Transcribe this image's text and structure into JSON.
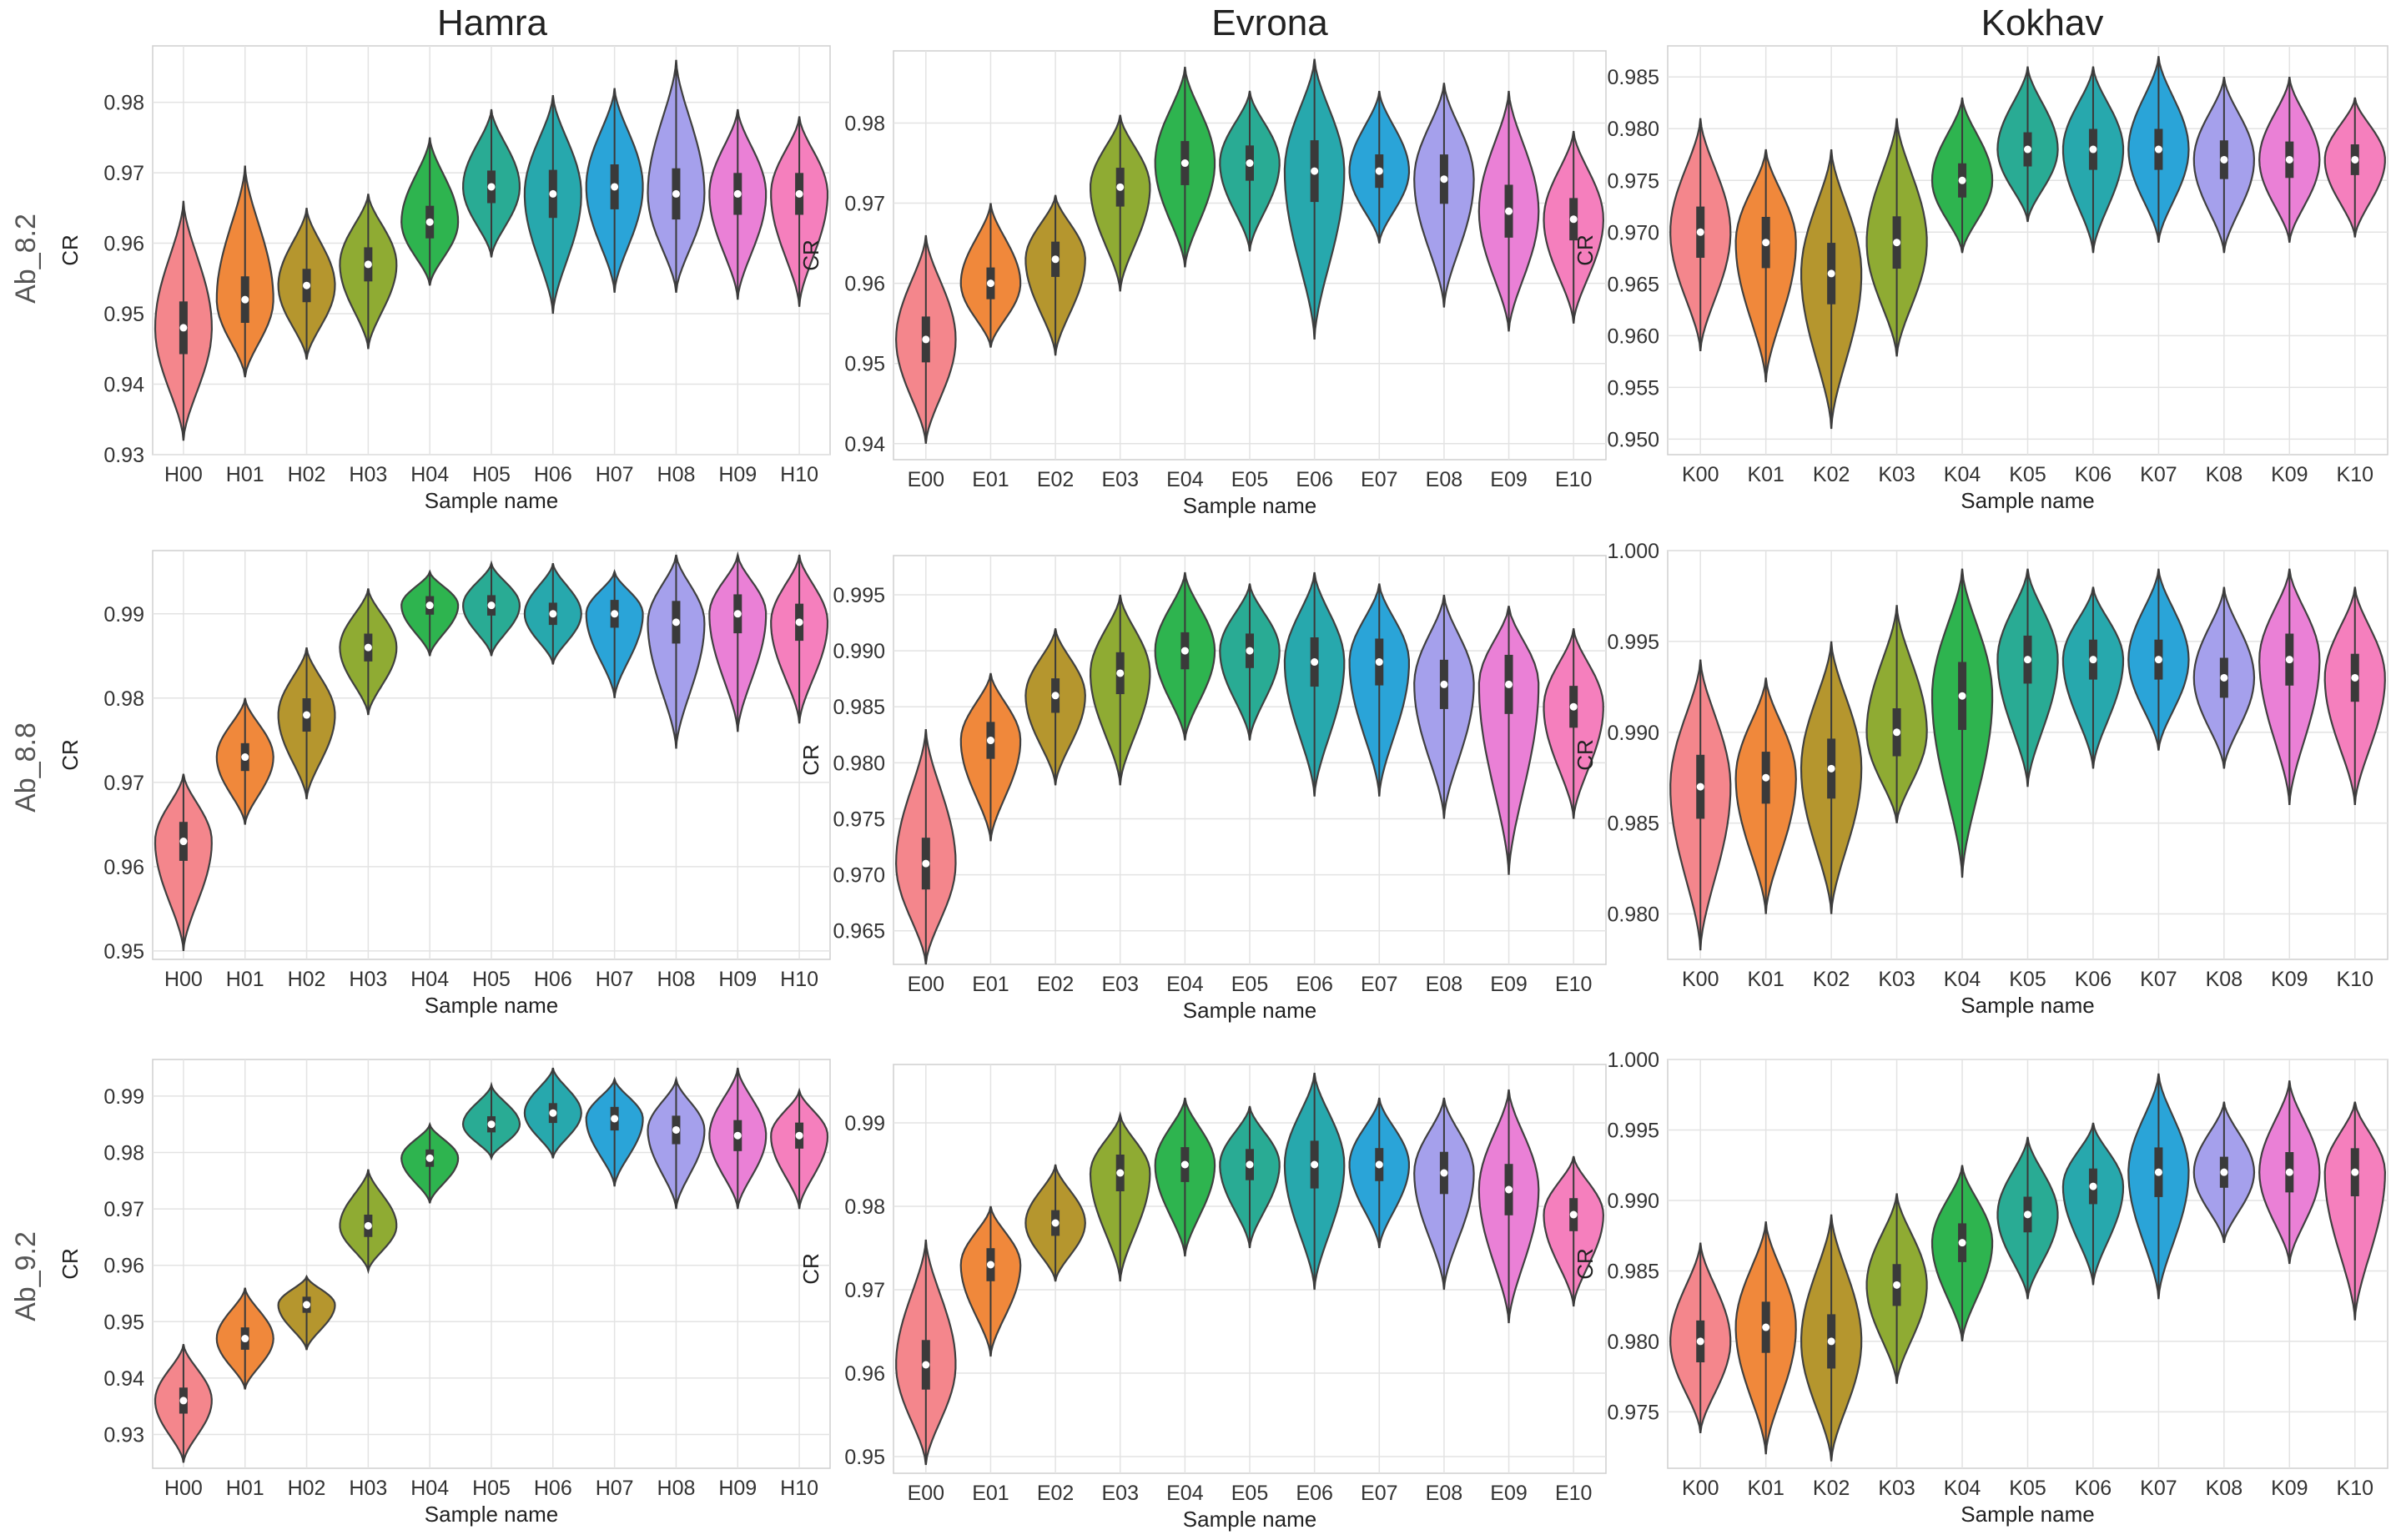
{
  "columns": [
    "Hamra",
    "Evrona",
    "Kokhav"
  ],
  "rows": [
    "Ab_8.2",
    "Ab_8.8",
    "Ab_9.2"
  ],
  "palette": [
    "#f4868c",
    "#f0883b",
    "#b5962e",
    "#8fab33",
    "#2eb44f",
    "#29ab94",
    "#27a8ad",
    "#2aa4d8",
    "#a5a0ec",
    "#ea80d6",
    "#f57fbd"
  ],
  "chart_data": [
    {
      "type": "violin",
      "group": "Hamra",
      "row": "Ab_8.2",
      "xlabel": "Sample name",
      "ylabel": "CR",
      "ylim": [
        0.93,
        0.988
      ],
      "yticks": [
        0.93,
        0.94,
        0.95,
        0.96,
        0.97,
        0.98
      ],
      "tick_labels": [
        "0.93",
        "0.94",
        "0.95",
        "0.96",
        "0.97",
        "0.98"
      ],
      "categories": [
        "H00",
        "H01",
        "H02",
        "H03",
        "H04",
        "H05",
        "H06",
        "H07",
        "H08",
        "H09",
        "H10"
      ],
      "medians": [
        0.948,
        0.952,
        0.954,
        0.957,
        0.963,
        0.968,
        0.967,
        0.968,
        0.967,
        0.967,
        0.967
      ],
      "mins": [
        0.932,
        0.941,
        0.9435,
        0.945,
        0.954,
        0.958,
        0.95,
        0.953,
        0.953,
        0.952,
        0.951
      ],
      "maxs": [
        0.966,
        0.971,
        0.965,
        0.967,
        0.975,
        0.979,
        0.981,
        0.982,
        0.986,
        0.979,
        0.978
      ]
    },
    {
      "type": "violin",
      "group": "Evrona",
      "row": "Ab_8.2",
      "xlabel": "Sample name",
      "ylabel": "CR",
      "ylim": [
        0.938,
        0.989
      ],
      "yticks": [
        0.94,
        0.95,
        0.96,
        0.97,
        0.98
      ],
      "tick_labels": [
        "0.94",
        "0.95",
        "0.96",
        "0.97",
        "0.98"
      ],
      "categories": [
        "E00",
        "E01",
        "E02",
        "E03",
        "E04",
        "E05",
        "E06",
        "E07",
        "E08",
        "E09",
        "E10"
      ],
      "medians": [
        0.953,
        0.96,
        0.963,
        0.972,
        0.975,
        0.975,
        0.974,
        0.974,
        0.973,
        0.969,
        0.968
      ],
      "mins": [
        0.94,
        0.952,
        0.951,
        0.959,
        0.962,
        0.964,
        0.953,
        0.965,
        0.957,
        0.954,
        0.955
      ],
      "maxs": [
        0.966,
        0.97,
        0.971,
        0.981,
        0.987,
        0.984,
        0.988,
        0.984,
        0.985,
        0.984,
        0.979
      ]
    },
    {
      "type": "violin",
      "group": "Kokhav",
      "row": "Ab_8.2",
      "xlabel": "Sample name",
      "ylabel": "CR",
      "ylim": [
        0.9485,
        0.988
      ],
      "yticks": [
        0.95,
        0.955,
        0.96,
        0.965,
        0.97,
        0.975,
        0.98,
        0.985
      ],
      "tick_labels": [
        "0.950",
        "0.955",
        "0.960",
        "0.965",
        "0.970",
        "0.975",
        "0.980",
        "0.985"
      ],
      "categories": [
        "K00",
        "K01",
        "K02",
        "K03",
        "K04",
        "K05",
        "K06",
        "K07",
        "K08",
        "K09",
        "K10"
      ],
      "medians": [
        0.97,
        0.969,
        0.966,
        0.969,
        0.975,
        0.978,
        0.978,
        0.978,
        0.977,
        0.977,
        0.977
      ],
      "mins": [
        0.9585,
        0.9555,
        0.951,
        0.958,
        0.968,
        0.971,
        0.968,
        0.969,
        0.968,
        0.969,
        0.9695
      ],
      "maxs": [
        0.981,
        0.978,
        0.978,
        0.981,
        0.983,
        0.986,
        0.986,
        0.987,
        0.985,
        0.985,
        0.983
      ]
    },
    {
      "type": "violin",
      "group": "Hamra",
      "row": "Ab_8.8",
      "xlabel": "Sample name",
      "ylabel": "CR",
      "ylim": [
        0.949,
        0.9975
      ],
      "yticks": [
        0.95,
        0.96,
        0.97,
        0.98,
        0.99
      ],
      "tick_labels": [
        "0.95",
        "0.96",
        "0.97",
        "0.98",
        "0.99"
      ],
      "categories": [
        "H00",
        "H01",
        "H02",
        "H03",
        "H04",
        "H05",
        "H06",
        "H07",
        "H08",
        "H09",
        "H10"
      ],
      "medians": [
        0.963,
        0.973,
        0.978,
        0.986,
        0.991,
        0.991,
        0.99,
        0.99,
        0.989,
        0.99,
        0.989
      ],
      "mins": [
        0.95,
        0.965,
        0.968,
        0.978,
        0.985,
        0.985,
        0.984,
        0.98,
        0.974,
        0.976,
        0.977
      ],
      "maxs": [
        0.971,
        0.98,
        0.986,
        0.993,
        0.995,
        0.996,
        0.996,
        0.995,
        0.997,
        0.997,
        0.997
      ]
    },
    {
      "type": "violin",
      "group": "Evrona",
      "row": "Ab_8.8",
      "xlabel": "Sample name",
      "ylabel": "CR",
      "ylim": [
        0.962,
        0.9985
      ],
      "yticks": [
        0.965,
        0.97,
        0.975,
        0.98,
        0.985,
        0.99,
        0.995
      ],
      "tick_labels": [
        "0.965",
        "0.970",
        "0.975",
        "0.980",
        "0.985",
        "0.990",
        "0.995"
      ],
      "categories": [
        "E00",
        "E01",
        "E02",
        "E03",
        "E04",
        "E05",
        "E06",
        "E07",
        "E08",
        "E09",
        "E10"
      ],
      "medians": [
        0.971,
        0.982,
        0.986,
        0.988,
        0.99,
        0.99,
        0.989,
        0.989,
        0.987,
        0.987,
        0.985
      ],
      "mins": [
        0.962,
        0.973,
        0.978,
        0.978,
        0.982,
        0.982,
        0.977,
        0.977,
        0.975,
        0.97,
        0.975
      ],
      "maxs": [
        0.983,
        0.988,
        0.992,
        0.995,
        0.997,
        0.996,
        0.997,
        0.996,
        0.995,
        0.994,
        0.992
      ]
    },
    {
      "type": "violin",
      "group": "Kokhav",
      "row": "Ab_8.8",
      "xlabel": "Sample name",
      "ylabel": "CR",
      "ylim": [
        0.9775,
        1.0
      ],
      "yticks": [
        0.98,
        0.985,
        0.99,
        0.995,
        1.0
      ],
      "tick_labels": [
        "0.980",
        "0.985",
        "0.990",
        "0.995",
        "1.000"
      ],
      "categories": [
        "K00",
        "K01",
        "K02",
        "K03",
        "K04",
        "K05",
        "K06",
        "K07",
        "K08",
        "K09",
        "K10"
      ],
      "medians": [
        0.987,
        0.9875,
        0.988,
        0.99,
        0.992,
        0.994,
        0.994,
        0.994,
        0.993,
        0.994,
        0.993
      ],
      "mins": [
        0.978,
        0.98,
        0.98,
        0.985,
        0.982,
        0.987,
        0.988,
        0.989,
        0.988,
        0.986,
        0.986
      ],
      "maxs": [
        0.994,
        0.993,
        0.995,
        0.997,
        0.999,
        0.999,
        0.998,
        0.999,
        0.998,
        0.999,
        0.998
      ]
    },
    {
      "type": "violin",
      "group": "Hamra",
      "row": "Ab_9.2",
      "xlabel": "Sample name",
      "ylabel": "CR",
      "ylim": [
        0.924,
        0.9965
      ],
      "yticks": [
        0.93,
        0.94,
        0.95,
        0.96,
        0.97,
        0.98,
        0.99
      ],
      "tick_labels": [
        "0.93",
        "0.94",
        "0.95",
        "0.96",
        "0.97",
        "0.98",
        "0.99"
      ],
      "categories": [
        "H00",
        "H01",
        "H02",
        "H03",
        "H04",
        "H05",
        "H06",
        "H07",
        "H08",
        "H09",
        "H10"
      ],
      "medians": [
        0.936,
        0.947,
        0.953,
        0.967,
        0.979,
        0.985,
        0.987,
        0.986,
        0.984,
        0.983,
        0.983
      ],
      "mins": [
        0.925,
        0.938,
        0.945,
        0.959,
        0.971,
        0.979,
        0.979,
        0.974,
        0.97,
        0.97,
        0.97
      ],
      "maxs": [
        0.946,
        0.956,
        0.958,
        0.977,
        0.985,
        0.992,
        0.995,
        0.993,
        0.993,
        0.995,
        0.991
      ]
    },
    {
      "type": "violin",
      "group": "Evrona",
      "row": "Ab_9.2",
      "xlabel": "Sample name",
      "ylabel": "CR",
      "ylim": [
        0.948,
        0.997
      ],
      "yticks": [
        0.95,
        0.96,
        0.97,
        0.98,
        0.99
      ],
      "tick_labels": [
        "0.95",
        "0.96",
        "0.97",
        "0.98",
        "0.99"
      ],
      "categories": [
        "E00",
        "E01",
        "E02",
        "E03",
        "E04",
        "E05",
        "E06",
        "E07",
        "E08",
        "E09",
        "E10"
      ],
      "medians": [
        0.961,
        0.973,
        0.978,
        0.984,
        0.985,
        0.985,
        0.985,
        0.985,
        0.984,
        0.982,
        0.979
      ],
      "mins": [
        0.949,
        0.962,
        0.971,
        0.971,
        0.974,
        0.975,
        0.97,
        0.975,
        0.97,
        0.966,
        0.968
      ],
      "maxs": [
        0.976,
        0.98,
        0.985,
        0.991,
        0.993,
        0.992,
        0.996,
        0.993,
        0.993,
        0.994,
        0.986
      ]
    },
    {
      "type": "violin",
      "group": "Kokhav",
      "row": "Ab_9.2",
      "xlabel": "Sample name",
      "ylabel": "CR",
      "ylim": [
        0.971,
        1.0
      ],
      "yticks": [
        0.975,
        0.98,
        0.985,
        0.99,
        0.995,
        1.0
      ],
      "tick_labels": [
        "0.975",
        "0.980",
        "0.985",
        "0.990",
        "0.995",
        "1.000"
      ],
      "categories": [
        "K00",
        "K01",
        "K02",
        "K03",
        "K04",
        "K05",
        "K06",
        "K07",
        "K08",
        "K09",
        "K10"
      ],
      "medians": [
        0.98,
        0.981,
        0.98,
        0.984,
        0.987,
        0.989,
        0.991,
        0.992,
        0.992,
        0.992,
        0.992
      ],
      "mins": [
        0.9735,
        0.972,
        0.9715,
        0.977,
        0.98,
        0.983,
        0.984,
        0.983,
        0.987,
        0.9855,
        0.9815
      ],
      "maxs": [
        0.987,
        0.9885,
        0.989,
        0.9905,
        0.9925,
        0.9945,
        0.9955,
        0.999,
        0.997,
        0.9985,
        0.997
      ]
    }
  ]
}
